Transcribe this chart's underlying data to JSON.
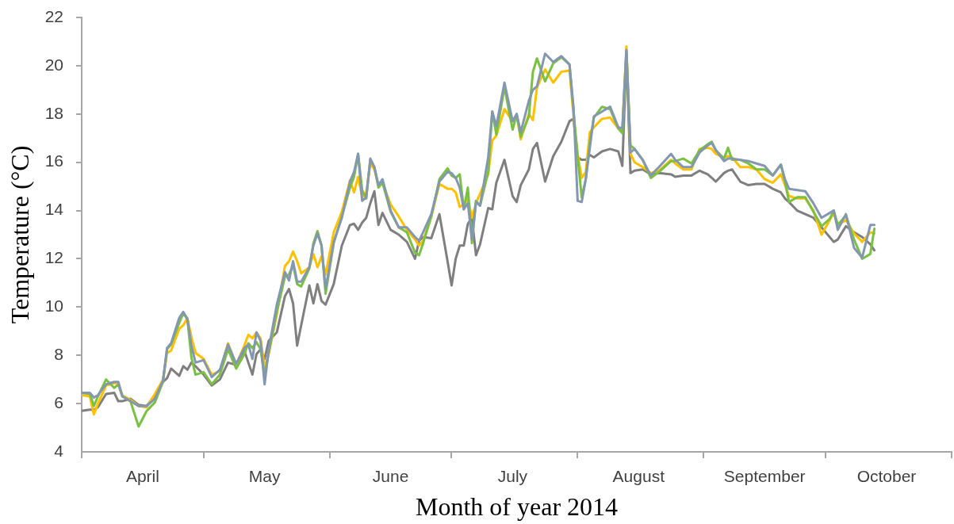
{
  "chart_data": {
    "type": "line",
    "xlabel": "Month of year 2014",
    "ylabel": "Temperature (°C)",
    "xlim": [
      "2014-04-01",
      "2014-11-01"
    ],
    "xticks": [
      {
        "value": "2014-04-01",
        "label": null
      },
      {
        "value": "2014-04-16",
        "label": "April"
      },
      {
        "value": "2014-05-01",
        "label": null
      },
      {
        "value": "2014-05-16",
        "label": "May"
      },
      {
        "value": "2014-06-01",
        "label": null
      },
      {
        "value": "2014-06-16",
        "label": "June"
      },
      {
        "value": "2014-07-01",
        "label": null
      },
      {
        "value": "2014-07-16",
        "label": "July"
      },
      {
        "value": "2014-08-01",
        "label": null
      },
      {
        "value": "2014-08-16",
        "label": "August"
      },
      {
        "value": "2014-09-01",
        "label": null
      },
      {
        "value": "2014-09-16",
        "label": "September"
      },
      {
        "value": "2014-10-01",
        "label": null
      },
      {
        "value": "2014-10-16",
        "label": "October"
      },
      {
        "value": "2014-11-01",
        "label": null
      }
    ],
    "ylim": [
      4,
      22
    ],
    "yticks": [
      4,
      6,
      8,
      10,
      12,
      14,
      16,
      18,
      20,
      22
    ],
    "x": [
      "2014-04-01",
      "2014-04-03",
      "2014-04-04",
      "2014-04-05",
      "2014-04-07",
      "2014-04-09",
      "2014-04-10",
      "2014-04-11",
      "2014-04-13",
      "2014-04-15",
      "2014-04-17",
      "2014-04-19",
      "2014-04-21",
      "2014-04-22",
      "2014-04-23",
      "2014-04-25",
      "2014-04-26",
      "2014-04-27",
      "2014-04-28",
      "2014-04-29",
      "2014-05-01",
      "2014-05-03",
      "2014-05-05",
      "2014-05-07",
      "2014-05-09",
      "2014-05-11",
      "2014-05-12",
      "2014-05-13",
      "2014-05-14",
      "2014-05-15",
      "2014-05-16",
      "2014-05-17",
      "2014-05-19",
      "2014-05-21",
      "2014-05-22",
      "2014-05-23",
      "2014-05-24",
      "2014-05-25",
      "2014-05-27",
      "2014-05-28",
      "2014-05-29",
      "2014-05-30",
      "2014-05-31",
      "2014-06-02",
      "2014-06-04",
      "2014-06-06",
      "2014-06-07",
      "2014-06-08",
      "2014-06-09",
      "2014-06-10",
      "2014-06-11",
      "2014-06-12",
      "2014-06-13",
      "2014-06-14",
      "2014-06-16",
      "2014-06-18",
      "2014-06-20",
      "2014-06-22",
      "2014-06-23",
      "2014-06-24",
      "2014-06-26",
      "2014-06-28",
      "2014-06-30",
      "2014-07-01",
      "2014-07-02",
      "2014-07-03",
      "2014-07-04",
      "2014-07-05",
      "2014-07-06",
      "2014-07-07",
      "2014-07-08",
      "2014-07-10",
      "2014-07-11",
      "2014-07-12",
      "2014-07-14",
      "2014-07-16",
      "2014-07-17",
      "2014-07-18",
      "2014-07-20",
      "2014-07-21",
      "2014-07-22",
      "2014-07-24",
      "2014-07-26",
      "2014-07-28",
      "2014-07-30",
      "2014-07-31",
      "2014-08-01",
      "2014-08-02",
      "2014-08-03",
      "2014-08-04",
      "2014-08-05",
      "2014-08-07",
      "2014-08-09",
      "2014-08-11",
      "2014-08-12",
      "2014-08-13",
      "2014-08-14",
      "2014-08-15",
      "2014-08-17",
      "2014-08-19",
      "2014-08-21",
      "2014-08-24",
      "2014-08-25",
      "2014-08-27",
      "2014-08-29",
      "2014-08-31",
      "2014-09-02",
      "2014-09-03",
      "2014-09-04",
      "2014-09-06",
      "2014-09-07",
      "2014-09-08",
      "2014-09-10",
      "2014-09-12",
      "2014-09-14",
      "2014-09-16",
      "2014-09-18",
      "2014-09-20",
      "2014-09-21",
      "2014-09-22",
      "2014-09-24",
      "2014-09-26",
      "2014-09-28",
      "2014-09-30",
      "2014-10-02",
      "2014-10-03",
      "2014-10-04",
      "2014-10-06",
      "2014-10-08",
      "2014-10-10",
      "2014-10-12",
      "2014-10-13"
    ],
    "series": [
      {
        "color": "#7f7f7f",
        "values": [
          5.7,
          5.75,
          5.75,
          5.85,
          6.4,
          6.45,
          6.1,
          6.1,
          6.2,
          5.95,
          5.9,
          6.35,
          6.9,
          7.05,
          7.45,
          7.15,
          7.55,
          7.4,
          7.7,
          7.55,
          7.2,
          6.75,
          7.0,
          7.7,
          7.6,
          8.2,
          7.7,
          7.2,
          8.05,
          8.25,
          7.85,
          8.6,
          8.95,
          10.45,
          10.75,
          10.15,
          8.4,
          9.25,
          10.9,
          10.15,
          10.95,
          10.25,
          10.1,
          10.95,
          12.55,
          13.4,
          13.45,
          13.2,
          13.5,
          13.7,
          14.3,
          14.8,
          13.4,
          13.9,
          13.2,
          13.0,
          12.7,
          12.0,
          12.75,
          12.9,
          12.85,
          13.85,
          11.9,
          10.9,
          12.0,
          12.55,
          12.55,
          13.45,
          13.7,
          12.15,
          12.6,
          14.1,
          14.05,
          15.15,
          16.1,
          14.6,
          14.35,
          15.05,
          15.7,
          16.55,
          16.8,
          15.2,
          16.25,
          16.85,
          17.7,
          17.8,
          16.2,
          16.1,
          16.1,
          16.3,
          16.2,
          16.45,
          16.55,
          16.45,
          15.85,
          20.5,
          15.55,
          15.65,
          15.7,
          15.5,
          15.55,
          15.5,
          15.4,
          15.45,
          15.45,
          15.65,
          15.5,
          15.35,
          15.2,
          15.55,
          15.65,
          15.7,
          15.2,
          15.05,
          15.1,
          15.1,
          14.9,
          14.75,
          14.5,
          14.35,
          14.0,
          13.85,
          13.7,
          13.3,
          12.9,
          12.7,
          12.8,
          13.35,
          13.1,
          12.9,
          12.6,
          12.35
        ]
      },
      {
        "color": "#ffc000",
        "values": [
          6.35,
          6.3,
          5.55,
          6.0,
          6.75,
          6.85,
          6.85,
          6.35,
          6.15,
          5.9,
          5.85,
          6.4,
          7.0,
          8.1,
          8.2,
          9.1,
          9.25,
          9.55,
          8.75,
          8.1,
          7.85,
          7.2,
          7.35,
          8.5,
          7.6,
          8.4,
          8.85,
          8.7,
          8.95,
          8.7,
          7.5,
          8.05,
          9.7,
          11.7,
          11.9,
          12.3,
          11.9,
          11.4,
          11.65,
          12.2,
          11.65,
          12.1,
          11.35,
          13.1,
          13.95,
          15.25,
          14.75,
          15.4,
          14.55,
          14.75,
          15.95,
          15.7,
          15.05,
          15.15,
          14.25,
          13.75,
          13.2,
          12.8,
          12.55,
          12.75,
          13.75,
          15.1,
          14.9,
          14.9,
          14.75,
          14.15,
          14.25,
          14.5,
          13.7,
          14.3,
          14.7,
          15.5,
          16.9,
          17.1,
          18.2,
          17.7,
          17.95,
          16.95,
          18.0,
          17.75,
          19.1,
          19.85,
          19.3,
          19.75,
          19.8,
          17.9,
          16.35,
          15.35,
          15.6,
          17.25,
          17.45,
          17.8,
          17.85,
          17.4,
          17.35,
          20.8,
          16.35,
          16.0,
          15.8,
          15.55,
          15.65,
          16.1,
          15.95,
          15.7,
          15.7,
          16.55,
          16.6,
          16.55,
          16.35,
          16.2,
          16.25,
          16.2,
          15.8,
          15.8,
          15.7,
          15.3,
          15.15,
          15.5,
          15.05,
          14.6,
          14.5,
          14.5,
          14.0,
          13.0,
          13.6,
          13.9,
          13.4,
          13.6,
          13.05,
          12.7,
          13.1,
          13.05
        ]
      },
      {
        "color": "#7ac143",
        "values": [
          6.45,
          6.4,
          5.9,
          6.3,
          7.0,
          6.65,
          6.8,
          6.3,
          6.1,
          5.05,
          5.7,
          6.05,
          6.9,
          8.25,
          8.45,
          9.35,
          9.75,
          9.5,
          7.9,
          7.2,
          7.3,
          6.8,
          7.2,
          8.25,
          7.45,
          8.05,
          8.5,
          8.3,
          8.55,
          8.25,
          7.15,
          8.1,
          9.8,
          11.25,
          11.35,
          11.75,
          10.95,
          10.85,
          11.6,
          12.65,
          13.15,
          12.55,
          10.55,
          12.65,
          13.75,
          14.95,
          15.4,
          16.35,
          14.85,
          14.5,
          16.1,
          15.8,
          14.95,
          15.15,
          13.95,
          13.3,
          13.1,
          12.25,
          12.15,
          12.65,
          13.75,
          15.3,
          15.75,
          15.45,
          15.35,
          15.5,
          14.05,
          14.95,
          12.65,
          14.4,
          14.2,
          15.6,
          18.1,
          17.15,
          19.1,
          17.35,
          18.0,
          17.05,
          17.9,
          19.75,
          20.3,
          19.35,
          20.1,
          20.35,
          20.05,
          18.1,
          16.25,
          14.55,
          15.3,
          16.8,
          17.85,
          18.3,
          18.2,
          17.4,
          17.2,
          20.6,
          16.7,
          16.55,
          16.1,
          15.35,
          15.6,
          16.05,
          16.05,
          16.15,
          15.95,
          16.5,
          16.75,
          16.85,
          16.5,
          16.15,
          16.6,
          16.1,
          16.1,
          15.95,
          15.7,
          15.7,
          15.45,
          15.9,
          15.2,
          14.35,
          14.55,
          14.55,
          13.95,
          13.35,
          13.65,
          14.0,
          13.4,
          13.8,
          12.8,
          12.0,
          12.2,
          13.25
        ]
      },
      {
        "color": "#8497b0",
        "values": [
          6.45,
          6.45,
          6.25,
          6.35,
          6.8,
          6.9,
          6.9,
          6.3,
          6.1,
          5.9,
          5.9,
          6.2,
          6.95,
          8.3,
          8.5,
          9.55,
          9.8,
          9.5,
          8.4,
          7.7,
          7.8,
          7.1,
          7.4,
          8.45,
          7.65,
          8.3,
          8.45,
          7.85,
          8.95,
          8.6,
          6.8,
          8.25,
          10.1,
          11.45,
          11.1,
          11.9,
          11.05,
          11.05,
          11.65,
          12.55,
          13.05,
          12.55,
          10.75,
          12.7,
          13.7,
          15.2,
          15.6,
          16.35,
          14.4,
          14.55,
          16.15,
          15.8,
          15.05,
          15.3,
          14.0,
          13.3,
          13.3,
          12.9,
          12.75,
          13.1,
          13.85,
          15.2,
          15.6,
          15.55,
          15.35,
          14.95,
          14.05,
          14.3,
          12.8,
          14.35,
          14.2,
          16.2,
          18.1,
          17.5,
          19.3,
          17.7,
          18.0,
          17.25,
          18.55,
          19.0,
          19.15,
          20.5,
          20.15,
          20.4,
          20.05,
          18.25,
          14.4,
          14.35,
          15.3,
          16.6,
          17.9,
          18.1,
          18.3,
          17.45,
          17.4,
          20.65,
          16.4,
          16.55,
          16.1,
          15.45,
          15.8,
          16.35,
          16.1,
          15.8,
          15.8,
          16.4,
          16.7,
          16.8,
          16.5,
          16.05,
          16.15,
          16.15,
          16.1,
          16.05,
          15.95,
          15.85,
          15.45,
          15.9,
          15.3,
          14.9,
          14.85,
          14.8,
          14.3,
          13.7,
          13.9,
          14.0,
          13.2,
          13.85,
          12.45,
          12.05,
          13.4,
          13.4
        ]
      }
    ]
  }
}
